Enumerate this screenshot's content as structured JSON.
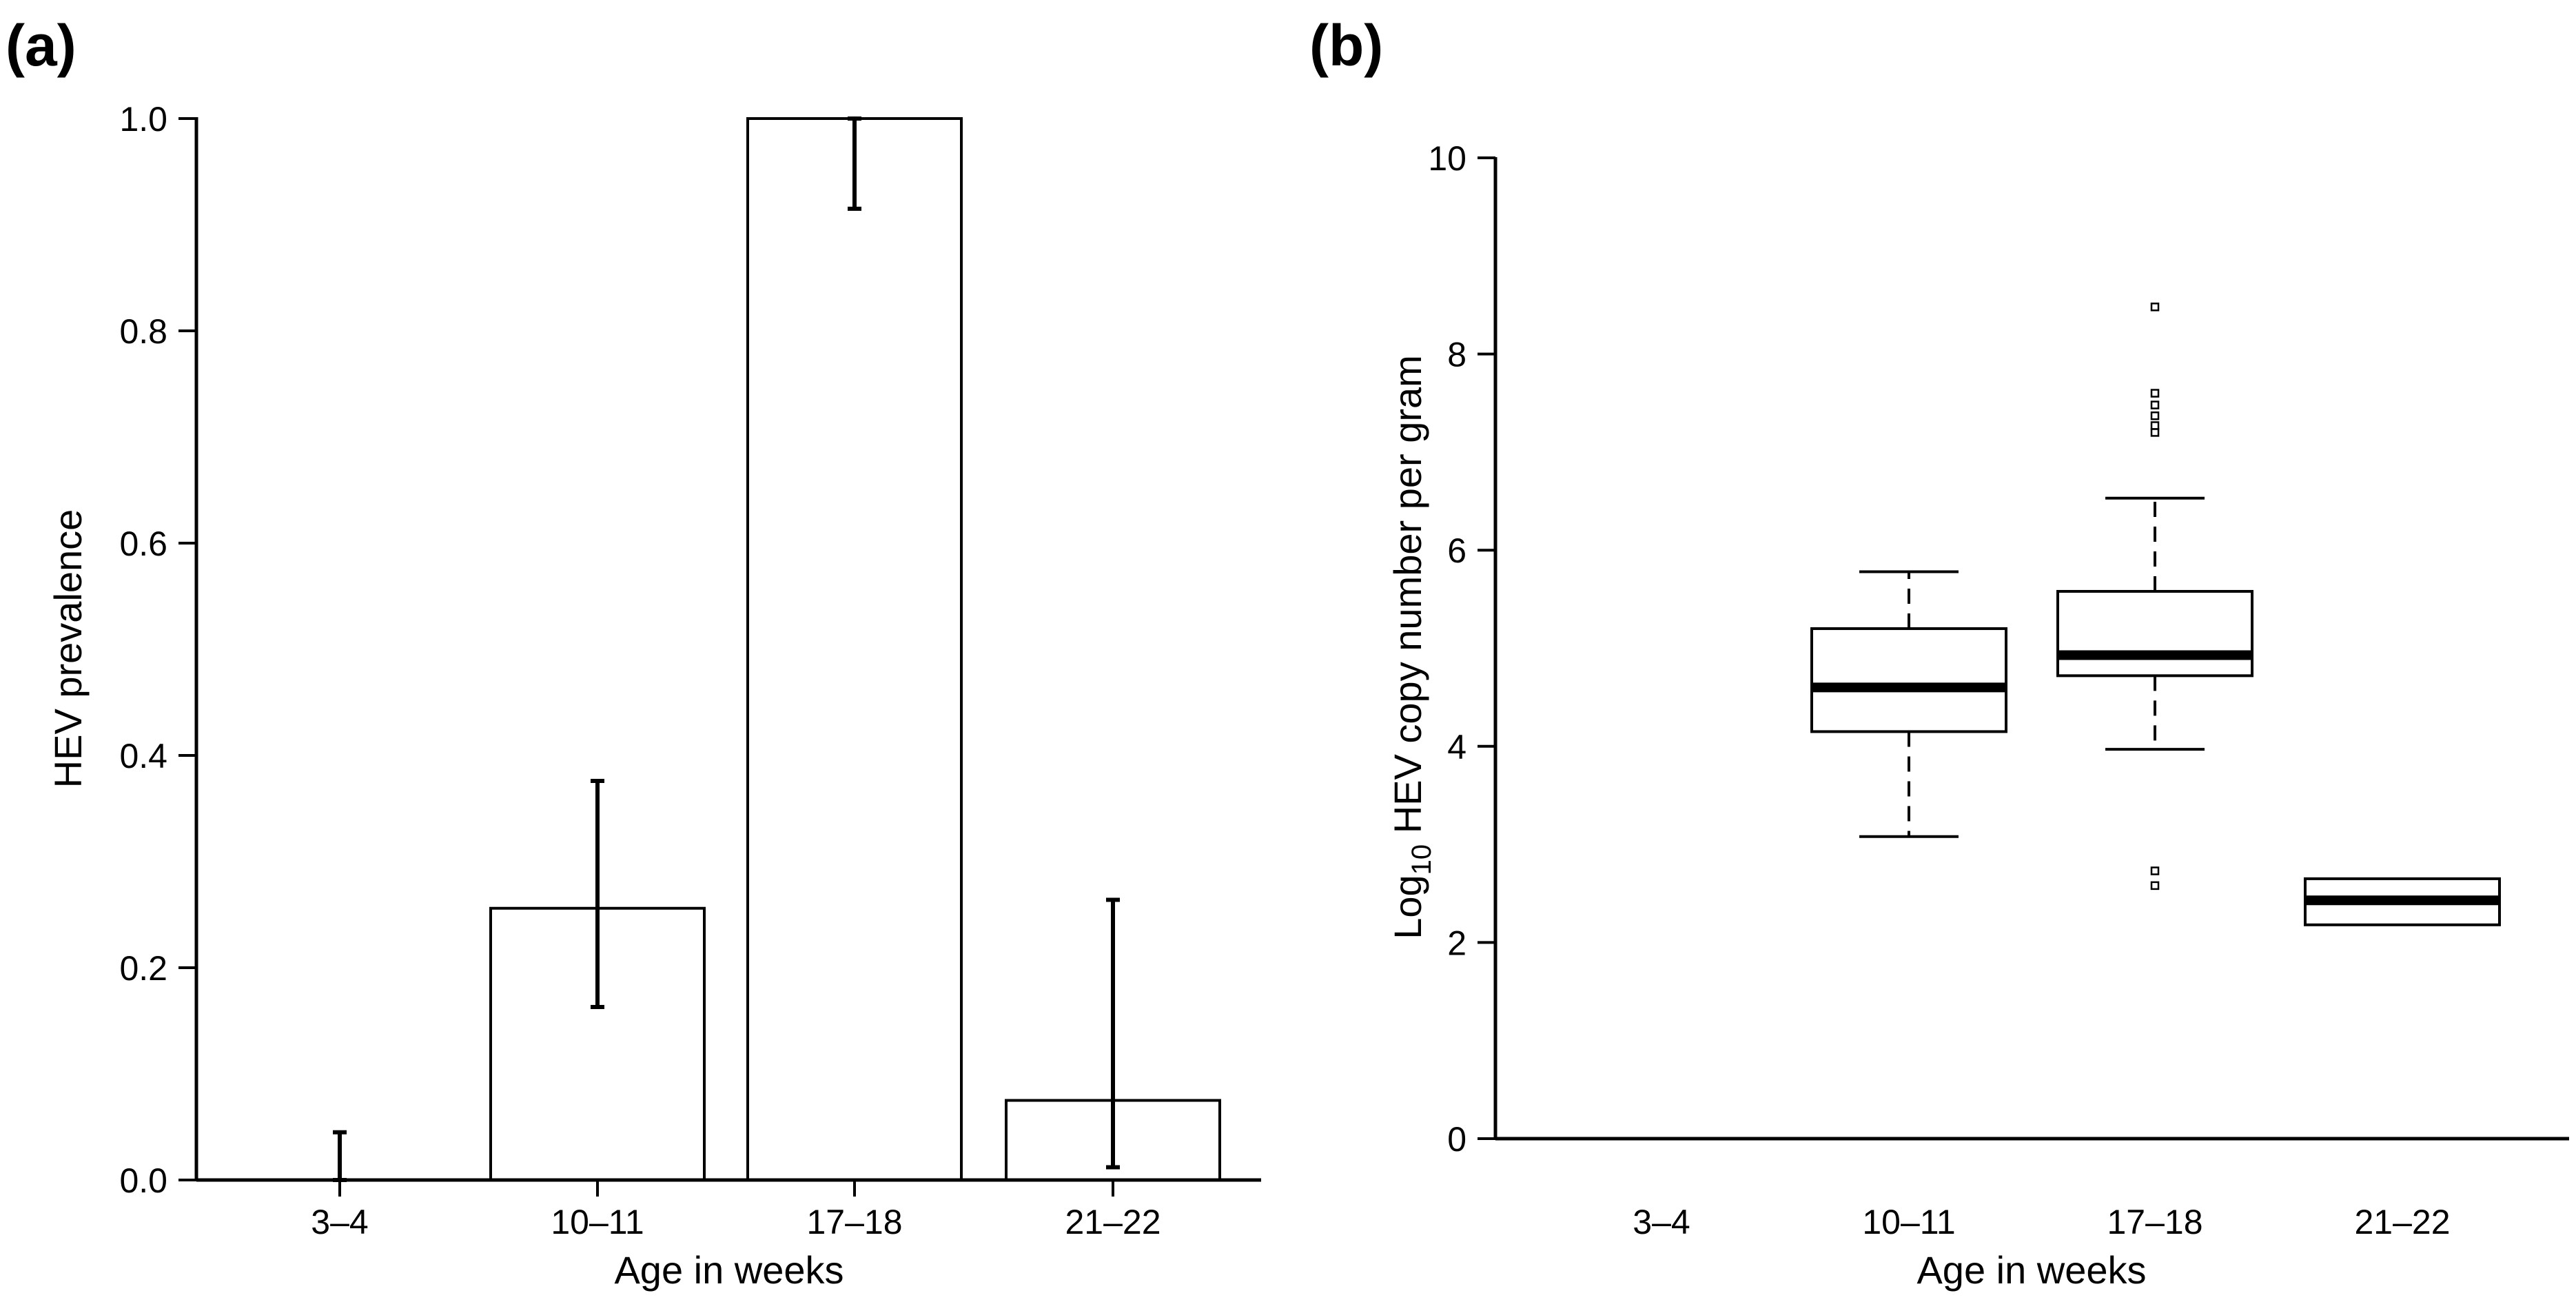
{
  "chart_data": [
    {
      "panel": "(a)",
      "type": "bar",
      "categories": [
        "3–4",
        "10–11",
        "17–18",
        "21–22"
      ],
      "values": [
        0.0,
        0.256,
        1.0,
        0.075
      ],
      "error_bars": [
        {
          "lower": 0.0,
          "upper": 0.045
        },
        {
          "lower": 0.163,
          "upper": 0.376
        },
        {
          "lower": 0.915,
          "upper": 1.0
        },
        {
          "lower": 0.012,
          "upper": 0.264
        }
      ],
      "yticks": [
        "0.0",
        "0.2",
        "0.4",
        "0.6",
        "0.8",
        "1.0"
      ],
      "ytick_values": [
        0,
        0.2,
        0.4,
        0.6,
        0.8,
        1.0
      ],
      "xlabel": "Age in weeks",
      "ylabel": "HEV prevalence",
      "ylim": [
        0,
        1.0
      ]
    },
    {
      "panel": "(b)",
      "type": "box",
      "categories": [
        "3–4",
        "10–11",
        "17–18",
        "21–22"
      ],
      "boxes": [
        null,
        {
          "whisker_low": 3.08,
          "q1": 4.15,
          "median": 4.6,
          "q3": 5.2,
          "whisker_high": 5.78,
          "outliers": []
        },
        {
          "whisker_low": 3.97,
          "q1": 4.72,
          "median": 4.93,
          "q3": 5.58,
          "whisker_high": 6.53,
          "outliers": [
            8.48,
            7.6,
            7.48,
            7.37,
            7.27,
            7.2,
            2.73,
            2.58
          ]
        },
        {
          "whisker_low": 2.18,
          "q1": 2.18,
          "median": 2.43,
          "q3": 2.65,
          "whisker_high": 2.65,
          "outliers": []
        }
      ],
      "yticks": [
        "0",
        "2",
        "4",
        "6",
        "8",
        "10"
      ],
      "ytick_values": [
        0,
        2,
        4,
        6,
        8,
        10
      ],
      "xlabel": "Age in weeks",
      "ylabel_prefix": "Log",
      "ylabel_subscript": "10",
      "ylabel_rest": " HEV copy number per gram",
      "ylim": [
        0,
        10
      ]
    }
  ]
}
